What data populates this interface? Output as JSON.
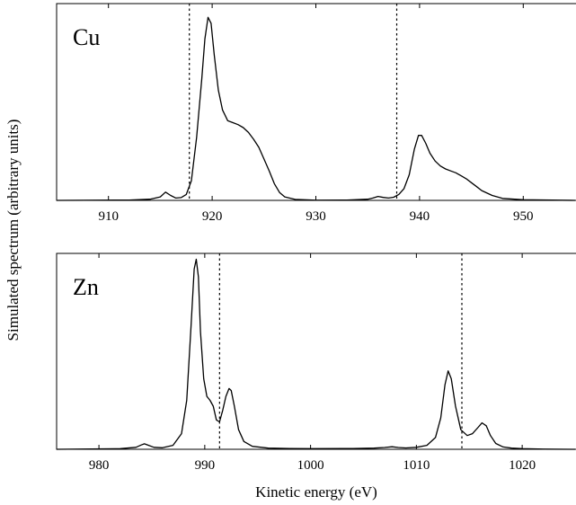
{
  "figure": {
    "ylabel": "Simulated spectrum (arbitrary units)",
    "xlabel": "Kinetic energy (eV)"
  },
  "chart_data": [
    {
      "type": "line",
      "panel_label": "Cu",
      "xlim": [
        905,
        955
      ],
      "ylim": [
        0,
        1.0
      ],
      "xticks": [
        910,
        920,
        930,
        940,
        950
      ],
      "xticklabels": [
        "910",
        "920",
        "930",
        "940",
        "950"
      ],
      "dashed_lines_x": [
        917.8,
        937.8
      ],
      "grid": false,
      "series": [
        {
          "x": [
            905,
            912,
            914,
            915,
            915.5,
            916,
            916.5,
            917,
            917.5,
            918,
            918.5,
            919,
            919.3,
            919.6,
            919.9,
            920.2,
            920.6,
            921,
            921.5,
            922,
            922.5,
            923,
            923.5,
            924,
            924.5,
            925,
            925.5,
            926,
            926.5,
            927,
            928,
            930,
            933,
            935,
            935.5,
            936,
            936.5,
            937,
            937.5,
            938,
            938.5,
            939,
            939.5,
            939.9,
            940.2,
            940.6,
            941,
            941.5,
            942,
            942.5,
            943,
            943.5,
            944,
            944.5,
            945,
            945.5,
            946,
            947,
            948,
            950,
            955
          ],
          "y": [
            0,
            0.002,
            0.006,
            0.018,
            0.042,
            0.025,
            0.012,
            0.014,
            0.03,
            0.1,
            0.32,
            0.62,
            0.82,
            0.93,
            0.9,
            0.74,
            0.56,
            0.46,
            0.405,
            0.395,
            0.385,
            0.37,
            0.345,
            0.31,
            0.27,
            0.21,
            0.15,
            0.085,
            0.04,
            0.018,
            0.005,
            0.001,
            0.002,
            0.006,
            0.012,
            0.02,
            0.015,
            0.012,
            0.016,
            0.03,
            0.06,
            0.13,
            0.26,
            0.33,
            0.33,
            0.29,
            0.24,
            0.2,
            0.175,
            0.16,
            0.15,
            0.14,
            0.125,
            0.11,
            0.09,
            0.07,
            0.05,
            0.025,
            0.01,
            0.003,
            0
          ]
        }
      ]
    },
    {
      "type": "line",
      "panel_label": "Zn",
      "xlim": [
        976,
        1025
      ],
      "ylim": [
        0,
        1.0
      ],
      "xticks": [
        980,
        990,
        1000,
        1010,
        1020
      ],
      "xticklabels": [
        "980",
        "990",
        "1000",
        "1010",
        "1020"
      ],
      "dashed_lines_x": [
        991.4,
        1014.3
      ],
      "grid": false,
      "series": [
        {
          "x": [
            976,
            982,
            983.5,
            984,
            984.3,
            984.7,
            985.2,
            986,
            987,
            987.8,
            988.3,
            988.7,
            989,
            989.2,
            989.4,
            989.6,
            989.9,
            990.2,
            990.5,
            990.8,
            991.1,
            991.4,
            991.7,
            992,
            992.3,
            992.5,
            992.8,
            993.2,
            993.7,
            994.5,
            996,
            998,
            1000,
            1004,
            1006,
            1007,
            1007.7,
            1008.3,
            1009,
            1010,
            1011,
            1011.8,
            1012.3,
            1012.7,
            1013,
            1013.3,
            1013.7,
            1014.2,
            1014.8,
            1015.3,
            1015.8,
            1016.2,
            1016.6,
            1017,
            1017.5,
            1018.2,
            1019,
            1020,
            1022,
            1025
          ],
          "y": [
            0,
            0.003,
            0.01,
            0.022,
            0.028,
            0.02,
            0.01,
            0.008,
            0.02,
            0.08,
            0.25,
            0.62,
            0.92,
            0.97,
            0.88,
            0.6,
            0.36,
            0.27,
            0.25,
            0.22,
            0.15,
            0.14,
            0.2,
            0.27,
            0.31,
            0.3,
            0.22,
            0.1,
            0.04,
            0.015,
            0.006,
            0.004,
            0.003,
            0.004,
            0.006,
            0.009,
            0.013,
            0.009,
            0.007,
            0.01,
            0.02,
            0.06,
            0.16,
            0.33,
            0.4,
            0.36,
            0.22,
            0.1,
            0.07,
            0.08,
            0.11,
            0.135,
            0.12,
            0.07,
            0.03,
            0.012,
            0.006,
            0.003,
            0.001,
            0
          ]
        }
      ]
    }
  ]
}
